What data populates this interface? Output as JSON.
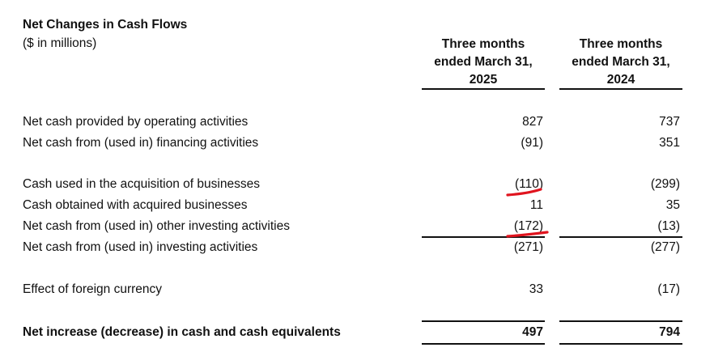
{
  "heading": {
    "title": "Net Changes in Cash Flows",
    "subtitle": "($ in millions)"
  },
  "columns": [
    {
      "lines": [
        "Three months",
        "ended March 31,",
        "2025"
      ]
    },
    {
      "lines": [
        "Three months",
        "ended March 31,",
        "2024"
      ]
    }
  ],
  "rows": [
    {
      "label": "Net cash provided by operating activities",
      "v2025": "827",
      "v2024": "737"
    },
    {
      "label": "Net cash from (used in) financing activities",
      "v2025": "(91)",
      "v2024": "351"
    },
    {
      "label": "Cash used in the acquisition of businesses",
      "v2025": "(110)",
      "v2024": "(299)"
    },
    {
      "label": "Cash obtained with acquired businesses",
      "v2025": "11",
      "v2024": "35"
    },
    {
      "label": "Net cash from (used in) other investing activities",
      "v2025": "(172)",
      "v2024": "(13)"
    },
    {
      "label": "Net cash from (used in) investing activities",
      "v2025": "(271)",
      "v2024": "(277)"
    },
    {
      "label": "Effect of foreign currency",
      "v2025": "33",
      "v2024": "(17)"
    },
    {
      "label": "Net increase (decrease) in cash and cash equivalents",
      "v2025": "497",
      "v2024": "794"
    }
  ],
  "annotations": {
    "underline_color": "#e0141e"
  }
}
